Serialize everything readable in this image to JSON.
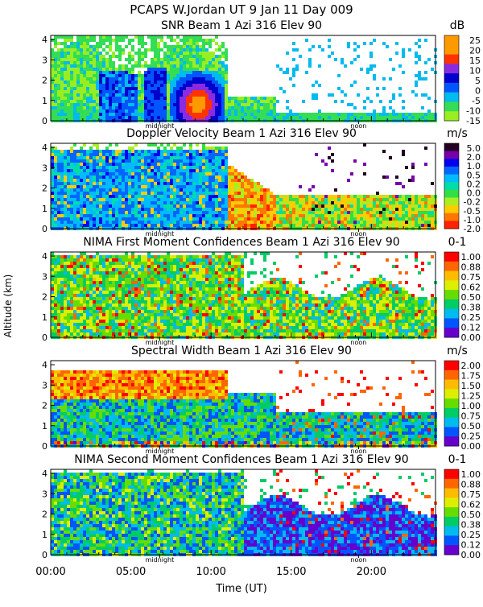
{
  "title_line1": "PCAPS W.Jordan UT   9 Jan 11 Day 009",
  "ylabel": "Altitude (km)",
  "xlabel": "Time (UT)",
  "x_ticks": [
    "00:00",
    "05:00",
    "10:00",
    "15:00",
    "20:00"
  ],
  "x_tick_hours": [
    0,
    5,
    10,
    15,
    20
  ],
  "markers": [
    "midnight",
    "noon"
  ],
  "marker_hours": [
    6.8,
    19.2
  ],
  "chart_data": [
    {
      "type": "heatmap",
      "title": "SNR Beam 1 Azi 316 Elev 90",
      "unit": "dB",
      "xlim": [
        0,
        24
      ],
      "ylim": [
        0,
        4.2
      ],
      "yticks": [
        "0",
        "1",
        "2",
        "3",
        "4"
      ],
      "cbar_labels": [
        "25",
        "20",
        "15",
        "10",
        "5",
        "0",
        "-5",
        "-10",
        "-15"
      ],
      "cbar_colors": [
        "#ff9900",
        "#ff9900",
        "#ff3300",
        "#8a2be2",
        "#0000cc",
        "#0055ff",
        "#00bbee",
        "#33dd55",
        "#99ee22"
      ]
    },
    {
      "type": "heatmap",
      "title": "Doppler Velocity Beam 1 Azi 316 Elev 90",
      "unit": "m/s",
      "xlim": [
        0,
        24
      ],
      "ylim": [
        0,
        4.2
      ],
      "yticks": [
        "0",
        "1",
        "2",
        "3",
        "4"
      ],
      "cbar_labels": [
        "5.0",
        "2.0",
        "1.0",
        "0.5",
        "0.2",
        "0.0",
        "-0.2",
        "-0.5",
        "-1.0",
        "-2.0"
      ],
      "cbar_colors": [
        "#220022",
        "#7700aa",
        "#0000ee",
        "#0066ff",
        "#00bbff",
        "#00ddaa",
        "#33dd44",
        "#aaee22",
        "#ffcc00",
        "#ff7700",
        "#ff2200"
      ]
    },
    {
      "type": "heatmap",
      "title": "NIMA First Moment Confidences Beam 1 Azi 316 Elev 90",
      "unit": "0-1",
      "xlim": [
        0,
        24
      ],
      "ylim": [
        0,
        4.2
      ],
      "yticks": [
        "0",
        "1",
        "2",
        "3",
        "4"
      ],
      "cbar_labels": [
        "1.00",
        "0.88",
        "0.75",
        "0.62",
        "0.50",
        "0.38",
        "0.25",
        "0.12",
        "0.00"
      ],
      "cbar_colors": [
        "#ff0000",
        "#ff6600",
        "#ffbb00",
        "#ddee00",
        "#66dd00",
        "#00cc66",
        "#00bbee",
        "#0055ff",
        "#6600cc"
      ]
    },
    {
      "type": "heatmap",
      "title": "Spectral Width Beam 1 Azi 316 Elev 90",
      "unit": "m/s",
      "xlim": [
        0,
        24
      ],
      "ylim": [
        0,
        4.2
      ],
      "yticks": [
        "0",
        "1",
        "2",
        "3",
        "4"
      ],
      "cbar_labels": [
        "2.00",
        "1.75",
        "1.50",
        "1.25",
        "1.00",
        "0.75",
        "0.50",
        "0.25",
        "0.00"
      ],
      "cbar_colors": [
        "#ff0000",
        "#ff6600",
        "#ffbb00",
        "#ddee00",
        "#66dd00",
        "#00cc66",
        "#00bbee",
        "#0055ff",
        "#6600cc"
      ]
    },
    {
      "type": "heatmap",
      "title": "NIMA Second Moment Confidences Beam 1 Azi 316 Elev 90",
      "unit": "0-1",
      "xlim": [
        0,
        24
      ],
      "ylim": [
        0,
        4.2
      ],
      "yticks": [
        "0",
        "1",
        "2",
        "3",
        "4"
      ],
      "cbar_labels": [
        "1.00",
        "0.88",
        "0.75",
        "0.62",
        "0.50",
        "0.38",
        "0.25",
        "0.12",
        "0.00"
      ],
      "cbar_colors": [
        "#ff0000",
        "#ff6600",
        "#ffbb00",
        "#ddee00",
        "#66dd00",
        "#00cc66",
        "#00bbee",
        "#0055ff",
        "#6600cc"
      ]
    }
  ]
}
